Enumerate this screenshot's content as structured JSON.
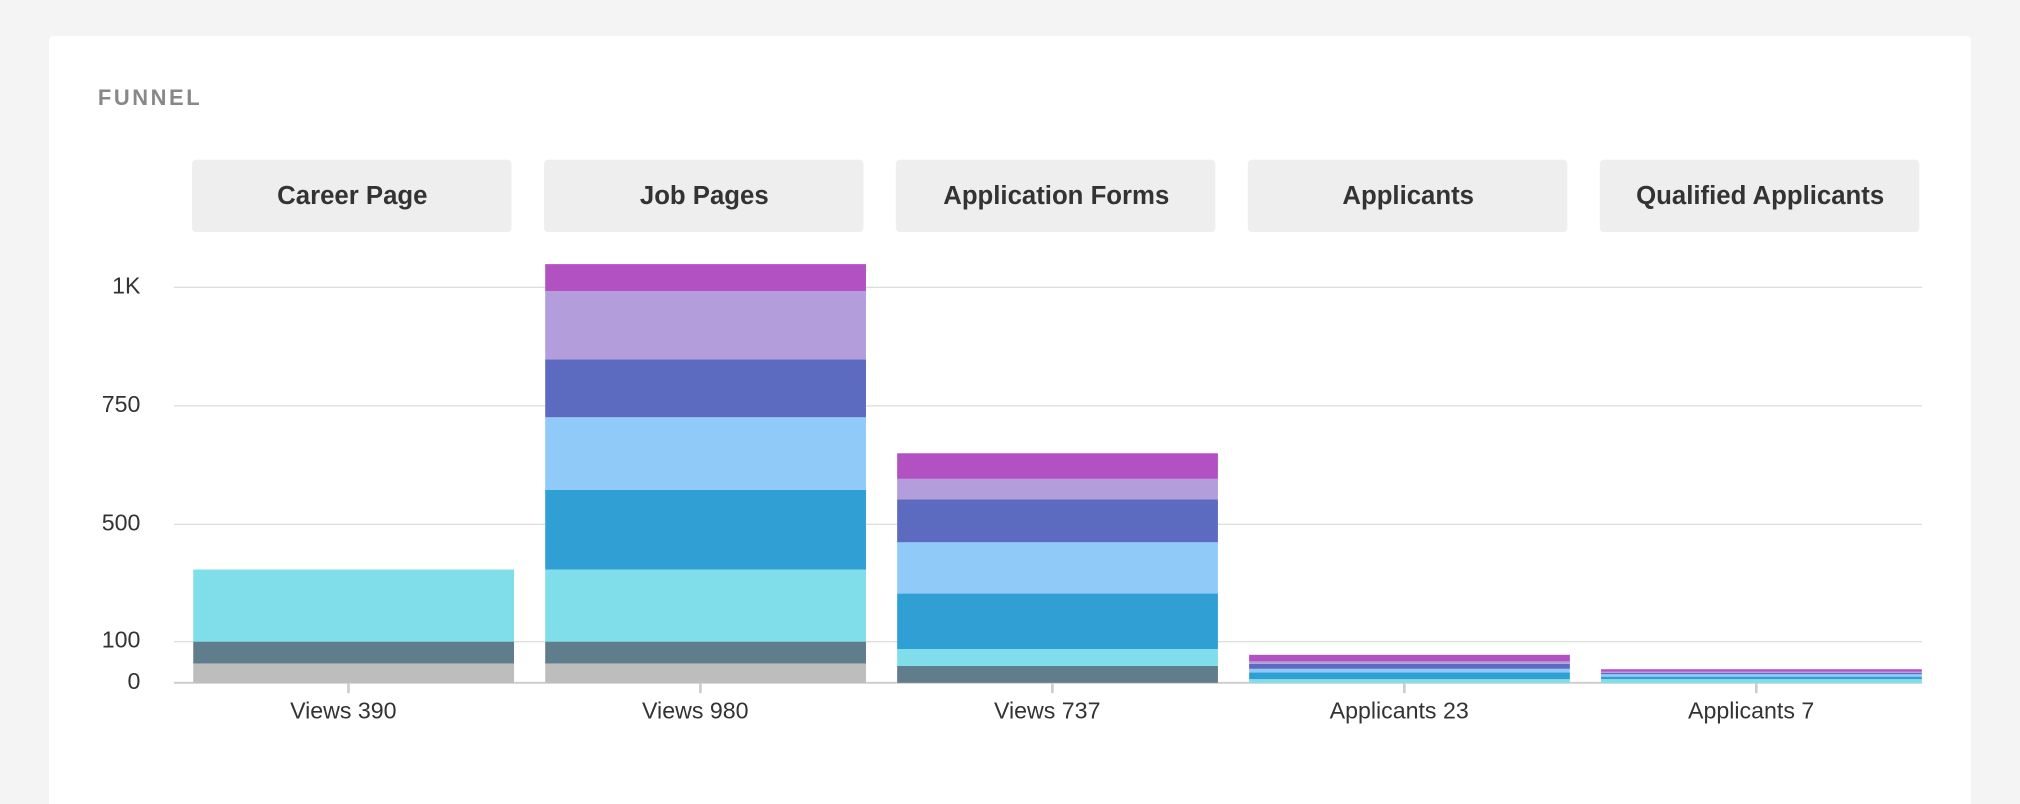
{
  "header": {
    "title": "FUNNEL"
  },
  "chart_data": {
    "type": "bar",
    "stacked": true,
    "categories": [
      "Career Page",
      "Job Pages",
      "Application Forms",
      "Applicants",
      "Qualified Applicants"
    ],
    "bottom_labels": [
      "Views 390",
      "Views 980",
      "Views 737",
      "Applicants 23",
      "Applicants 7"
    ],
    "series": [
      {
        "color": "#bdbdbd",
        "values": [
          47,
          47,
          0,
          0,
          0
        ]
      },
      {
        "color": "#607d8b",
        "values": [
          53,
          53,
          41,
          0,
          0
        ]
      },
      {
        "color": "#80deea",
        "values": [
          246,
          246,
          41,
          9,
          9
        ]
      },
      {
        "color": "#30a0d4",
        "values": [
          0,
          227,
          182,
          16,
          6
        ]
      },
      {
        "color": "#90caf9",
        "values": [
          0,
          153,
          175,
          9,
          6
        ]
      },
      {
        "color": "#5c6bc0",
        "values": [
          0,
          122,
          114,
          12,
          3
        ]
      },
      {
        "color": "#b39ddb",
        "values": [
          0,
          144,
          43,
          6,
          3
        ]
      },
      {
        "color": "#b252c2",
        "values": [
          0,
          57,
          54,
          16,
          6
        ]
      }
    ],
    "ylim": [
      0,
      1000
    ],
    "yticks": [
      0,
      100,
      500,
      750,
      {
        "value": 1000,
        "label": "1K"
      }
    ],
    "grid": true
  }
}
